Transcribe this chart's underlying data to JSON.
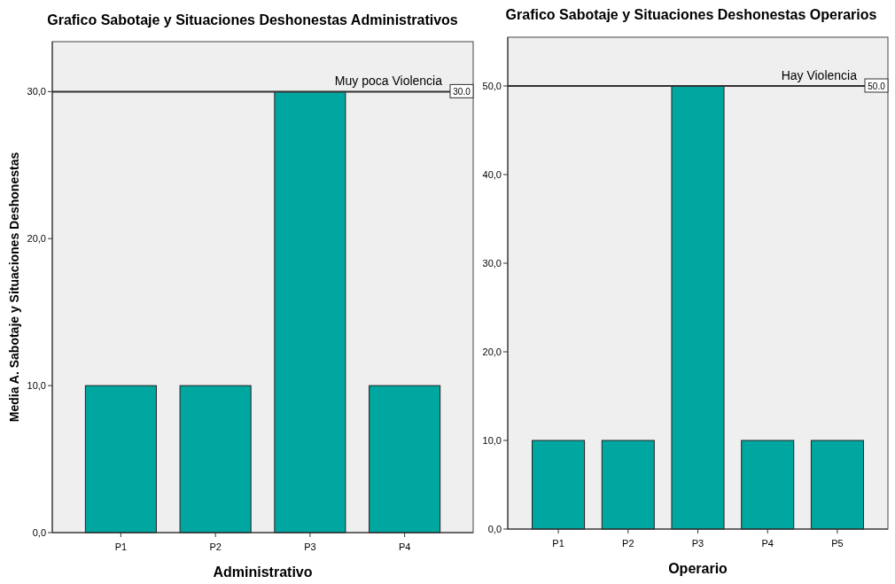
{
  "chart_data": [
    {
      "type": "bar",
      "title": "Grafico Sabotaje y Situaciones Deshonestas Administrativos",
      "xlabel": "Administrativo",
      "ylabel": "Media A. Sabotaje y Situaciones Deshonestas",
      "categories": [
        "P1",
        "P2",
        "P3",
        "P4"
      ],
      "values": [
        10,
        10,
        30,
        10
      ],
      "color": "#00a6a0",
      "ylim": [
        0,
        33.4
      ],
      "yticks": [
        {
          "value": 0,
          "label": "0,0"
        },
        {
          "value": 10,
          "label": "10,0"
        },
        {
          "value": 20,
          "label": "20,0"
        },
        {
          "value": 30,
          "label": "30,0"
        }
      ],
      "ref_lines": [
        {
          "axis": "y",
          "value": 30,
          "label": "Muy poca Violencia",
          "color": "#333333"
        }
      ],
      "annotations": [
        {
          "text": "30.0",
          "y": 30
        }
      ]
    },
    {
      "type": "bar",
      "title": "Grafico Sabotaje y Situaciones Deshonestas Operarios",
      "xlabel": "Operario",
      "categories": [
        "P1",
        "P2",
        "P3",
        "P4",
        "P5"
      ],
      "values": [
        10,
        10,
        50,
        10,
        10
      ],
      "color": "#00a6a0",
      "ylim": [
        0,
        55.5
      ],
      "yticks": [
        {
          "value": 0,
          "label": "0,0"
        },
        {
          "value": 10,
          "label": "10,0"
        },
        {
          "value": 20,
          "label": "20,0"
        },
        {
          "value": 30,
          "label": "30,0"
        },
        {
          "value": 40,
          "label": "40,0"
        },
        {
          "value": 50,
          "label": "50,0"
        }
      ],
      "ref_lines": [
        {
          "axis": "y",
          "value": 50,
          "label": "Hay Violencia",
          "color": "#333333"
        }
      ],
      "annotations": [
        {
          "text": "50.0",
          "y": 50
        }
      ]
    }
  ]
}
